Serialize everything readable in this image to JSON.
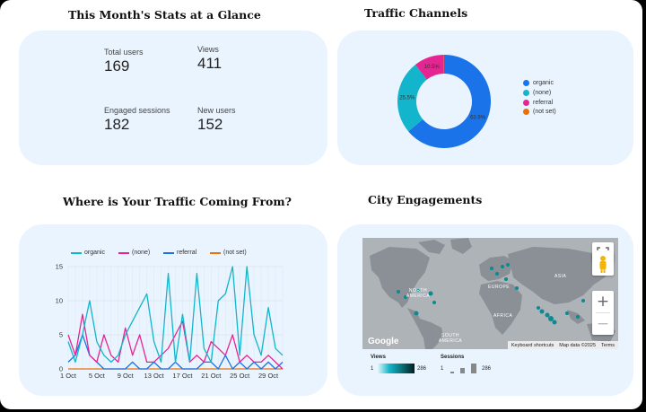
{
  "stats_title": "This Month's Stats at a Glance",
  "stats": [
    {
      "label": "Total users",
      "value": "169"
    },
    {
      "label": "Views",
      "value": "411"
    },
    {
      "label": "Engaged sessions",
      "value": "182"
    },
    {
      "label": "New users",
      "value": "152"
    }
  ],
  "traffic_title": "Traffic Channels",
  "traffic_legend": [
    {
      "label": "organic",
      "color": "#1a73e8"
    },
    {
      "label": "(none)",
      "color": "#12b5cb"
    },
    {
      "label": "referral",
      "color": "#e52592"
    },
    {
      "label": "(not set)",
      "color": "#e8710a"
    }
  ],
  "line_title": "Where is Your Traffic Coming From?",
  "city_title": "City Engagements",
  "map": {
    "attribution": "Google",
    "shortcuts": "Keyboard shortcuts",
    "mapdata": "Map data ©2025",
    "terms": "Terms",
    "zoom_in": "+",
    "zoom_out": "−",
    "continents": [
      "NORTH AMERICA",
      "EUROPE",
      "ASIA",
      "AFRICA",
      "SOUTH AMERICA"
    ]
  },
  "map_legend": {
    "views_label": "Views",
    "views_min": "1",
    "views_max": "286",
    "sessions_label": "Sessions",
    "sessions_min": "1",
    "sessions_max": "286"
  },
  "chart_data": [
    {
      "type": "pie",
      "title": "",
      "labels": [
        "organic",
        "(none)",
        "referral",
        "(not set)"
      ],
      "values": [
        63.9,
        25.5,
        10.5,
        0.1
      ],
      "slice_labels": [
        "63.9%",
        "25.5%",
        "10.5%",
        ""
      ],
      "colors": [
        "#1a73e8",
        "#12b5cb",
        "#e52592",
        "#e8710a"
      ],
      "donut": true,
      "legend": "right"
    },
    {
      "type": "line",
      "title": "",
      "x": [
        "1 Oct",
        "2 Oct",
        "3 Oct",
        "4 Oct",
        "5 Oct",
        "6 Oct",
        "7 Oct",
        "8 Oct",
        "9 Oct",
        "10 Oct",
        "11 Oct",
        "12 Oct",
        "13 Oct",
        "14 Oct",
        "15 Oct",
        "16 Oct",
        "17 Oct",
        "18 Oct",
        "19 Oct",
        "20 Oct",
        "21 Oct",
        "22 Oct",
        "23 Oct",
        "24 Oct",
        "25 Oct",
        "26 Oct",
        "27 Oct",
        "28 Oct",
        "29 Oct",
        "30 Oct",
        "31 Oct"
      ],
      "x_ticks": [
        "1 Oct",
        "5 Oct",
        "9 Oct",
        "13 Oct",
        "17 Oct",
        "21 Oct",
        "25 Oct",
        "29 Oct"
      ],
      "ylim": [
        0,
        15
      ],
      "y_ticks": [
        "0",
        "5",
        "10",
        "15"
      ],
      "grid": true,
      "legend": "top",
      "series": [
        {
          "name": "organic",
          "color": "#12b5cb",
          "values": [
            4,
            1,
            5,
            10,
            4,
            2,
            1,
            2,
            5,
            7,
            9,
            11,
            4,
            1,
            14,
            1,
            8,
            1,
            14,
            3,
            1,
            10,
            11,
            15,
            2,
            15,
            5,
            2,
            9,
            3,
            2
          ]
        },
        {
          "name": "(none)",
          "color": "#e52592",
          "values": [
            5,
            2,
            8,
            2,
            1,
            5,
            2,
            1,
            6,
            2,
            5,
            1,
            1,
            2,
            3,
            5,
            7,
            1,
            2,
            1,
            4,
            3,
            2,
            5,
            1,
            2,
            1,
            1,
            2,
            1,
            0
          ]
        },
        {
          "name": "referral",
          "color": "#1a73e8",
          "values": [
            1,
            2,
            5,
            2,
            1,
            0,
            0,
            0,
            0,
            1,
            0,
            0,
            1,
            0,
            0,
            1,
            0,
            0,
            0,
            1,
            1,
            0,
            2,
            0,
            1,
            0,
            1,
            0,
            1,
            0,
            1
          ]
        },
        {
          "name": "(not set)",
          "color": "#e8710a",
          "values": [
            0,
            0,
            0,
            0,
            0,
            0,
            0,
            0,
            0,
            0,
            0,
            0,
            0,
            0,
            0,
            0,
            0,
            0,
            0,
            0,
            0,
            0,
            0,
            0,
            0,
            0,
            0,
            0,
            0,
            0,
            0
          ]
        }
      ]
    }
  ]
}
